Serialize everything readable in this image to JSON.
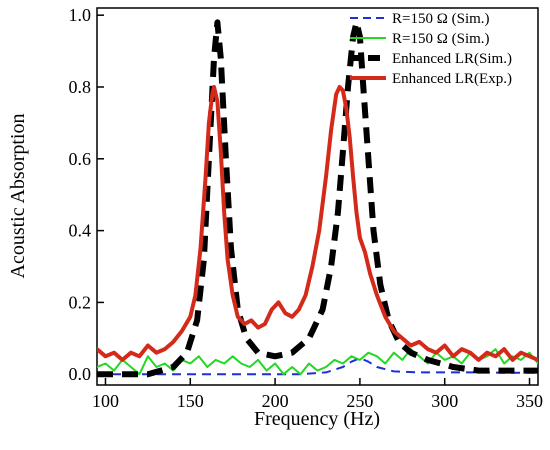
{
  "chart_data": {
    "type": "line",
    "xlabel": "Frequency (Hz)",
    "ylabel": "Acoustic Absorption",
    "xlim": [
      95,
      355
    ],
    "ylim": [
      -0.03,
      1.02
    ],
    "x_ticks": [
      100,
      150,
      200,
      250,
      300,
      350
    ],
    "x_tick_labels": [
      "100",
      "150",
      "200",
      "250",
      "300",
      "350"
    ],
    "y_ticks": [
      0.0,
      0.2,
      0.4,
      0.6,
      0.8,
      1.0
    ],
    "y_tick_labels": [
      "0.0",
      "0.2",
      "0.4",
      "0.6",
      "0.8",
      "1.0"
    ],
    "grid": false,
    "legend_position": "top-right",
    "series": [
      {
        "name": "R=150 Ω (Sim.)",
        "color": "#1f2fd6",
        "style": "dashed",
        "x": [
          95,
          110,
          125,
          140,
          155,
          170,
          185,
          200,
          215,
          230,
          240,
          245,
          250,
          255,
          260,
          270,
          285,
          300,
          320,
          340,
          355
        ],
        "y": [
          0.0,
          0.0,
          0.0,
          0.0,
          0.0,
          0.0,
          0.0,
          0.0,
          0.0,
          0.005,
          0.02,
          0.035,
          0.045,
          0.035,
          0.02,
          0.008,
          0.005,
          0.005,
          0.005,
          0.004,
          0.004
        ]
      },
      {
        "name": "R=150 Ω (Sim.)",
        "color": "#22d822",
        "style": "solid",
        "x": [
          95,
          100,
          105,
          110,
          115,
          120,
          125,
          130,
          135,
          140,
          145,
          150,
          155,
          160,
          165,
          170,
          175,
          180,
          185,
          190,
          195,
          200,
          205,
          210,
          215,
          220,
          225,
          230,
          235,
          240,
          245,
          250,
          255,
          260,
          265,
          270,
          275,
          280,
          285,
          290,
          295,
          300,
          305,
          310,
          315,
          320,
          325,
          330,
          335,
          340,
          345,
          350,
          355
        ],
        "y": [
          0.02,
          0.03,
          0.01,
          0.04,
          0.02,
          0.0,
          0.05,
          0.02,
          0.03,
          0.01,
          0.04,
          0.03,
          0.05,
          0.02,
          0.04,
          0.03,
          0.05,
          0.03,
          0.02,
          0.04,
          0.01,
          0.03,
          0.0,
          0.02,
          0.0,
          0.03,
          0.01,
          0.02,
          0.04,
          0.03,
          0.05,
          0.04,
          0.06,
          0.05,
          0.03,
          0.06,
          0.04,
          0.07,
          0.05,
          0.03,
          0.06,
          0.04,
          0.05,
          0.03,
          0.06,
          0.04,
          0.05,
          0.07,
          0.03,
          0.05,
          0.04,
          0.06,
          0.03
        ]
      },
      {
        "name": "Enhanced LR(Sim.)",
        "color": "#000000",
        "style": "dashed",
        "x": [
          95,
          110,
          125,
          140,
          148,
          154,
          158,
          161,
          164,
          166,
          168,
          171,
          174,
          178,
          183,
          190,
          200,
          210,
          220,
          228,
          233,
          237,
          240,
          243,
          246,
          248,
          250,
          252,
          255,
          258,
          262,
          267,
          273,
          280,
          290,
          305,
          320,
          340,
          355
        ],
        "y": [
          0.0,
          0.0,
          0.0,
          0.02,
          0.06,
          0.15,
          0.32,
          0.6,
          0.88,
          0.98,
          0.88,
          0.6,
          0.35,
          0.18,
          0.1,
          0.06,
          0.05,
          0.06,
          0.1,
          0.18,
          0.3,
          0.45,
          0.62,
          0.8,
          0.94,
          0.98,
          0.94,
          0.8,
          0.6,
          0.4,
          0.25,
          0.15,
          0.09,
          0.06,
          0.04,
          0.02,
          0.01,
          0.01,
          0.01
        ]
      },
      {
        "name": "Enhanced LR(Exp.)",
        "color": "#d42a1a",
        "style": "solid",
        "x": [
          95,
          100,
          105,
          110,
          115,
          120,
          125,
          130,
          135,
          140,
          145,
          150,
          153,
          156,
          159,
          161,
          163,
          164,
          166,
          168,
          170,
          172,
          175,
          178,
          182,
          186,
          190,
          194,
          198,
          202,
          206,
          210,
          214,
          218,
          222,
          226,
          230,
          233,
          236,
          238,
          240,
          242,
          244,
          246,
          248,
          250,
          253,
          256,
          260,
          265,
          270,
          275,
          280,
          285,
          290,
          295,
          300,
          305,
          310,
          315,
          320,
          325,
          330,
          335,
          340,
          345,
          350,
          355
        ],
        "y": [
          0.07,
          0.05,
          0.06,
          0.04,
          0.06,
          0.05,
          0.08,
          0.06,
          0.07,
          0.09,
          0.12,
          0.16,
          0.22,
          0.35,
          0.55,
          0.7,
          0.78,
          0.8,
          0.76,
          0.62,
          0.45,
          0.32,
          0.22,
          0.16,
          0.14,
          0.15,
          0.13,
          0.14,
          0.18,
          0.2,
          0.17,
          0.16,
          0.18,
          0.22,
          0.3,
          0.4,
          0.55,
          0.68,
          0.78,
          0.8,
          0.79,
          0.74,
          0.66,
          0.55,
          0.45,
          0.38,
          0.34,
          0.28,
          0.22,
          0.16,
          0.12,
          0.1,
          0.08,
          0.09,
          0.07,
          0.06,
          0.08,
          0.05,
          0.07,
          0.06,
          0.04,
          0.06,
          0.05,
          0.07,
          0.04,
          0.06,
          0.05,
          0.04
        ]
      }
    ]
  }
}
